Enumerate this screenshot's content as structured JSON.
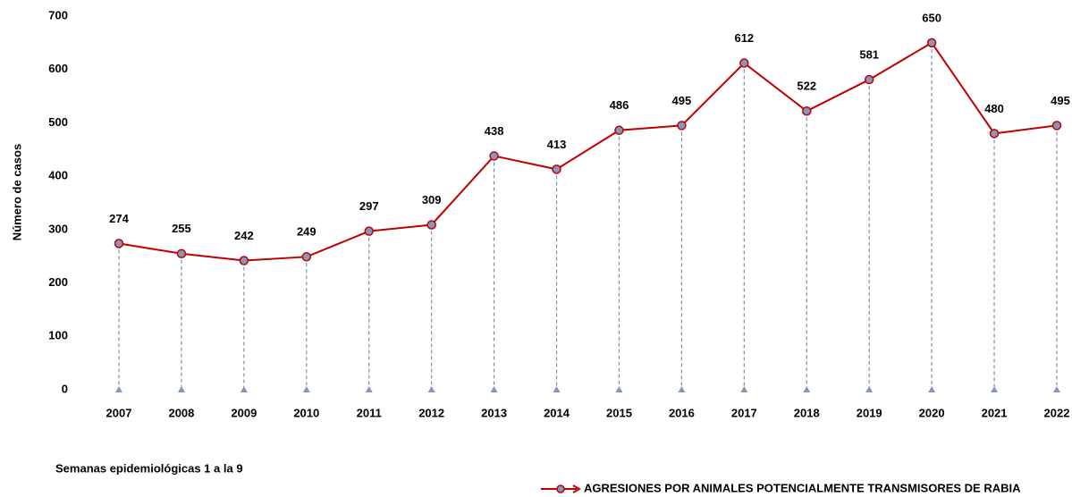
{
  "chart_data": {
    "type": "line",
    "y_label": "Número de casos",
    "note": "Semanas epidemiológicas 1 a la 9",
    "categories": [
      "2007",
      "2008",
      "2009",
      "2010",
      "2011",
      "2012",
      "2013",
      "2014",
      "2015",
      "2016",
      "2017",
      "2018",
      "2019",
      "2020",
      "2021",
      "2022"
    ],
    "series": [
      {
        "name": "AGRESIONES POR ANIMALES POTENCIALMENTE TRANSMISORES DE RABIA",
        "color": "#c00000",
        "marker_color": "#8497b8",
        "values": [
          274,
          255,
          242,
          249,
          297,
          309,
          438,
          413,
          486,
          495,
          612,
          522,
          581,
          650,
          480,
          495
        ]
      }
    ],
    "ylim": [
      0,
      700
    ],
    "yticks": [
      0,
      100,
      200,
      300,
      400,
      500,
      600,
      700
    ],
    "drop_lines": true,
    "legend": "bottom-right"
  }
}
